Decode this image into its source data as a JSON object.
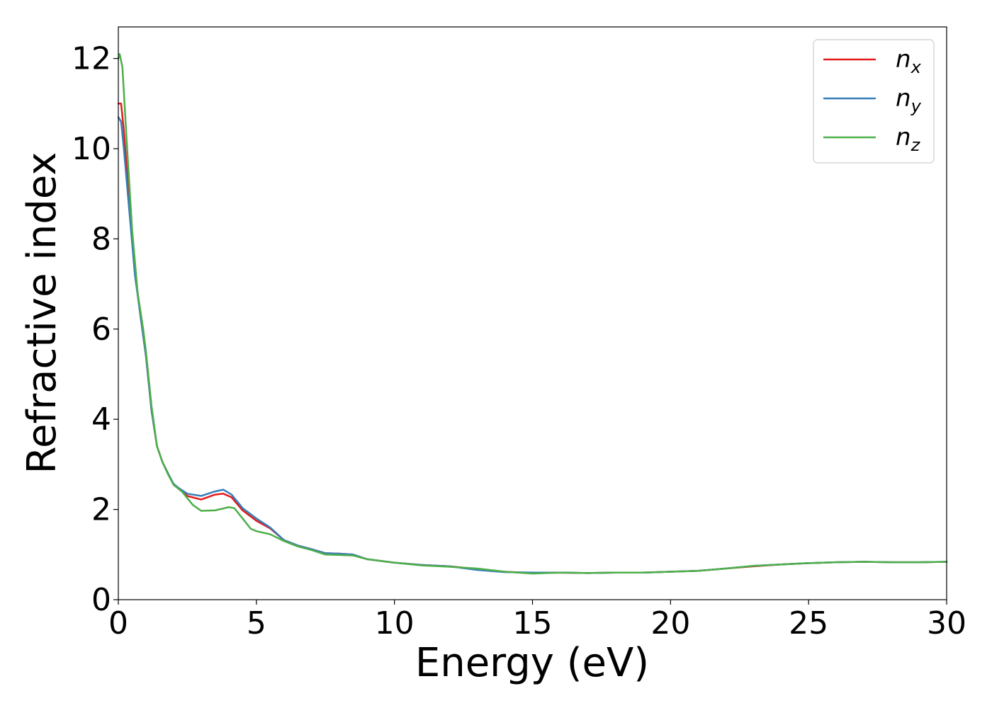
{
  "chart_data": {
    "type": "line",
    "title": "",
    "xlabel": "Energy (eV)",
    "ylabel": "Refractive index",
    "xlim": [
      0,
      30
    ],
    "ylim": [
      0,
      12.7
    ],
    "xticks": [
      0,
      5,
      10,
      15,
      20,
      25,
      30
    ],
    "yticks": [
      0,
      2,
      4,
      6,
      8,
      10,
      12
    ],
    "grid": false,
    "legend_position": "top-right",
    "series": [
      {
        "name": "n",
        "subscript": "x",
        "color": "#e41a1c",
        "points": [
          [
            0,
            11.0
          ],
          [
            0.1,
            11.0
          ],
          [
            0.2,
            10.4
          ],
          [
            0.4,
            8.8
          ],
          [
            0.6,
            7.3
          ],
          [
            0.8,
            6.3
          ],
          [
            1.0,
            5.4
          ],
          [
            1.2,
            4.2
          ],
          [
            1.4,
            3.4
          ],
          [
            1.6,
            3.05
          ],
          [
            1.8,
            2.8
          ],
          [
            2.0,
            2.55
          ],
          [
            2.2,
            2.45
          ],
          [
            2.5,
            2.3
          ],
          [
            3.0,
            2.22
          ],
          [
            3.5,
            2.33
          ],
          [
            3.8,
            2.35
          ],
          [
            4.1,
            2.27
          ],
          [
            4.5,
            1.98
          ],
          [
            5.0,
            1.75
          ],
          [
            5.5,
            1.58
          ],
          [
            6.0,
            1.32
          ],
          [
            6.5,
            1.2
          ],
          [
            7.0,
            1.12
          ],
          [
            7.5,
            1.03
          ],
          [
            8.0,
            1.02
          ],
          [
            8.5,
            1.0
          ],
          [
            9.0,
            0.9
          ],
          [
            10.0,
            0.82
          ],
          [
            11.0,
            0.77
          ],
          [
            12.0,
            0.74
          ],
          [
            13.0,
            0.68
          ],
          [
            14.0,
            0.62
          ],
          [
            15.0,
            0.59
          ],
          [
            16.0,
            0.6
          ],
          [
            17.0,
            0.59
          ],
          [
            18.0,
            0.6
          ],
          [
            19.0,
            0.6
          ],
          [
            20.0,
            0.62
          ],
          [
            21.0,
            0.64
          ],
          [
            22.0,
            0.69
          ],
          [
            23.0,
            0.74
          ],
          [
            24.0,
            0.78
          ],
          [
            25.0,
            0.81
          ],
          [
            26.0,
            0.83
          ],
          [
            27.0,
            0.84
          ],
          [
            28.0,
            0.83
          ],
          [
            29.0,
            0.83
          ],
          [
            30.0,
            0.84
          ]
        ]
      },
      {
        "name": "n",
        "subscript": "y",
        "color": "#377eb8",
        "points": [
          [
            0,
            10.7
          ],
          [
            0.1,
            10.6
          ],
          [
            0.2,
            10.0
          ],
          [
            0.4,
            8.6
          ],
          [
            0.6,
            7.2
          ],
          [
            0.8,
            6.3
          ],
          [
            1.0,
            5.4
          ],
          [
            1.2,
            4.2
          ],
          [
            1.4,
            3.4
          ],
          [
            1.6,
            3.05
          ],
          [
            1.8,
            2.8
          ],
          [
            2.0,
            2.57
          ],
          [
            2.2,
            2.47
          ],
          [
            2.5,
            2.35
          ],
          [
            3.0,
            2.3
          ],
          [
            3.5,
            2.4
          ],
          [
            3.8,
            2.44
          ],
          [
            4.1,
            2.33
          ],
          [
            4.5,
            2.03
          ],
          [
            5.0,
            1.8
          ],
          [
            5.5,
            1.6
          ],
          [
            6.0,
            1.32
          ],
          [
            6.5,
            1.2
          ],
          [
            7.0,
            1.12
          ],
          [
            7.5,
            1.03
          ],
          [
            8.0,
            1.02
          ],
          [
            8.5,
            1.0
          ],
          [
            9.0,
            0.9
          ],
          [
            10.0,
            0.82
          ],
          [
            11.0,
            0.77
          ],
          [
            12.0,
            0.74
          ],
          [
            13.0,
            0.66
          ],
          [
            14.0,
            0.61
          ],
          [
            15.0,
            0.6
          ],
          [
            16.0,
            0.6
          ],
          [
            17.0,
            0.59
          ],
          [
            18.0,
            0.6
          ],
          [
            19.0,
            0.6
          ],
          [
            20.0,
            0.62
          ],
          [
            21.0,
            0.64
          ],
          [
            22.0,
            0.69
          ],
          [
            23.0,
            0.75
          ],
          [
            24.0,
            0.78
          ],
          [
            25.0,
            0.81
          ],
          [
            26.0,
            0.83
          ],
          [
            27.0,
            0.84
          ],
          [
            28.0,
            0.83
          ],
          [
            29.0,
            0.83
          ],
          [
            30.0,
            0.84
          ]
        ]
      },
      {
        "name": "n",
        "subscript": "z",
        "color": "#4daf4a",
        "points": [
          [
            0,
            12.0
          ],
          [
            0.05,
            12.1
          ],
          [
            0.15,
            11.8
          ],
          [
            0.3,
            10.2
          ],
          [
            0.5,
            8.2
          ],
          [
            0.7,
            6.8
          ],
          [
            0.9,
            6.0
          ],
          [
            1.0,
            5.5
          ],
          [
            1.2,
            4.3
          ],
          [
            1.4,
            3.4
          ],
          [
            1.6,
            3.05
          ],
          [
            1.8,
            2.78
          ],
          [
            2.0,
            2.55
          ],
          [
            2.3,
            2.4
          ],
          [
            2.7,
            2.1
          ],
          [
            3.0,
            1.97
          ],
          [
            3.5,
            1.98
          ],
          [
            4.0,
            2.05
          ],
          [
            4.2,
            2.03
          ],
          [
            4.5,
            1.8
          ],
          [
            4.8,
            1.57
          ],
          [
            5.0,
            1.52
          ],
          [
            5.5,
            1.45
          ],
          [
            6.0,
            1.3
          ],
          [
            6.5,
            1.18
          ],
          [
            7.0,
            1.1
          ],
          [
            7.5,
            1.0
          ],
          [
            8.0,
            0.99
          ],
          [
            8.5,
            0.98
          ],
          [
            9.0,
            0.9
          ],
          [
            10.0,
            0.82
          ],
          [
            11.0,
            0.76
          ],
          [
            12.0,
            0.73
          ],
          [
            13.0,
            0.69
          ],
          [
            14.0,
            0.62
          ],
          [
            15.0,
            0.58
          ],
          [
            16.0,
            0.6
          ],
          [
            17.0,
            0.59
          ],
          [
            18.0,
            0.6
          ],
          [
            19.0,
            0.6
          ],
          [
            20.0,
            0.62
          ],
          [
            21.0,
            0.64
          ],
          [
            22.0,
            0.69
          ],
          [
            23.0,
            0.75
          ],
          [
            24.0,
            0.78
          ],
          [
            25.0,
            0.81
          ],
          [
            26.0,
            0.83
          ],
          [
            27.0,
            0.84
          ],
          [
            28.0,
            0.83
          ],
          [
            29.0,
            0.83
          ],
          [
            30.0,
            0.84
          ]
        ]
      }
    ]
  }
}
